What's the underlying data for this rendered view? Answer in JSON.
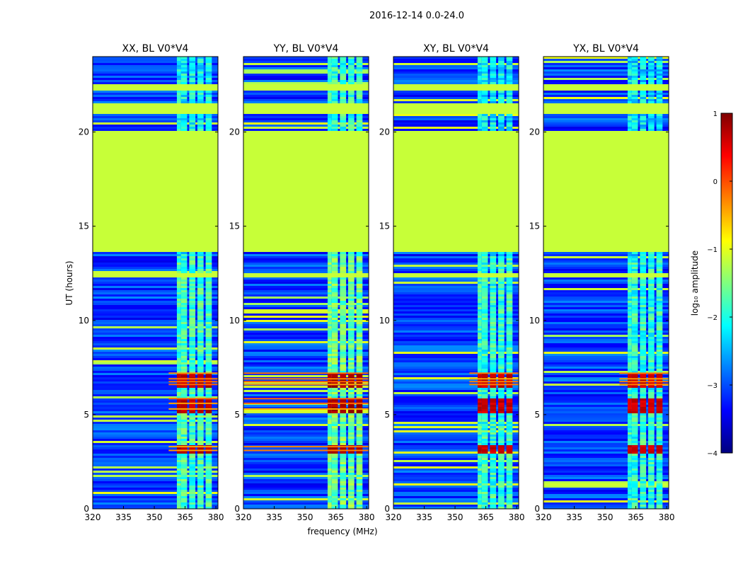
{
  "figure": {
    "title": "2016-12-14 0.0-24.0",
    "xlabel": "frequency (MHz)",
    "ylabel": "UT (hours)",
    "colorbar_label": "log₁₀ amplitude"
  },
  "colors": {
    "jet": [
      "#00007f",
      "#0000ff",
      "#007fff",
      "#00ffff",
      "#7fff7f",
      "#ffff00",
      "#ff7f00",
      "#ff0000",
      "#7f0000"
    ],
    "flag": "#99ff55"
  },
  "chart_data": {
    "type": "heatmap",
    "panels": [
      {
        "title": "XX, BL V0*V4",
        "emphasis": 1.0
      },
      {
        "title": "YY, BL V0*V4",
        "emphasis": 1.35
      },
      {
        "title": "XY, BL V0*V4",
        "emphasis": 0.85
      },
      {
        "title": "YX, BL V0*V4",
        "emphasis": 0.8
      }
    ],
    "x_range": [
      320,
      381
    ],
    "x_ticks": [
      320,
      335,
      350,
      365,
      380
    ],
    "y_range": [
      0,
      24
    ],
    "y_ticks": [
      0,
      5,
      10,
      15,
      20
    ],
    "colorbar": {
      "range": [
        -4,
        1
      ],
      "ticks": [
        -4,
        -3,
        -2,
        -1,
        0,
        1
      ]
    },
    "background_level": -3.0,
    "flagged_level": -1.15,
    "flagged_blocks_hours": [
      [
        0.0,
        0.1
      ],
      [
        13.7,
        20.1
      ],
      [
        21.0,
        21.6
      ],
      [
        22.3,
        22.6
      ],
      [
        12.3,
        12.6
      ]
    ],
    "rfi_band_mhz": [
      360,
      378
    ],
    "rfi_channels_mhz": [
      [
        361,
        363
      ],
      [
        363,
        366
      ],
      [
        367,
        370
      ],
      [
        371,
        374
      ],
      [
        375,
        378
      ]
    ],
    "strong_rows_hours": [
      6.6,
      6.75,
      6.9,
      7.2,
      5.3,
      5.6,
      5.85,
      3.1,
      3.3
    ]
  }
}
